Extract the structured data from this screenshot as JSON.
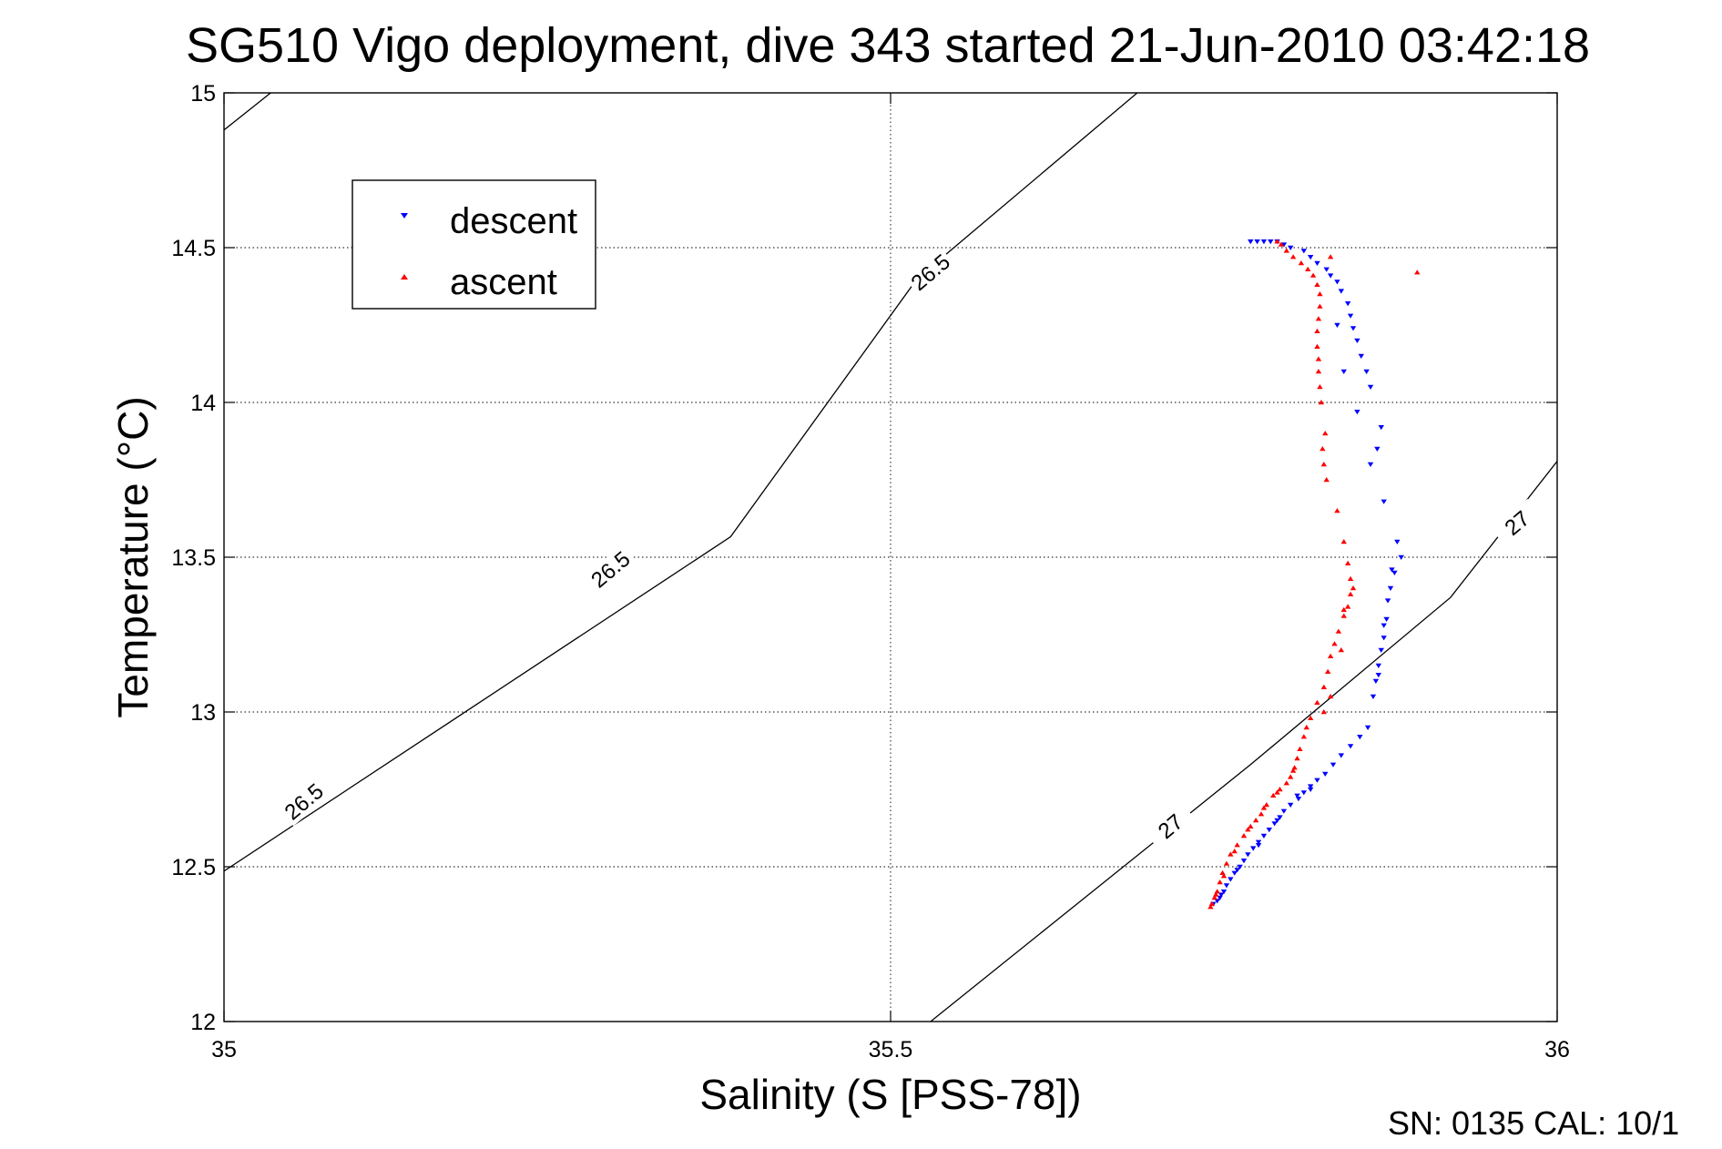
{
  "chart_data": {
    "type": "scatter",
    "title": "SG510 Vigo deployment, dive 343 started 21-Jun-2010 03:42:18",
    "xlabel": "Salinity (S [PSS-78])",
    "ylabel": "Temperature (°C)",
    "xlim": [
      35,
      36
    ],
    "ylim": [
      12,
      15
    ],
    "xticks": [
      "35",
      "35.5",
      "36"
    ],
    "yticks": [
      "12",
      "12.5",
      "13",
      "13.5",
      "14",
      "14.5",
      "15"
    ],
    "grid": true,
    "legend_position": "top-left",
    "footer": "SN: 0135  CAL: 10/1",
    "series": [
      {
        "name": "descent",
        "color": "#0000ff",
        "marker": "triangle-down",
        "points": [
          [
            35.785,
            14.52
          ],
          [
            35.79,
            14.52
          ],
          [
            35.795,
            14.51
          ],
          [
            35.8,
            14.5
          ],
          [
            35.81,
            14.49
          ],
          [
            35.815,
            14.47
          ],
          [
            35.82,
            14.45
          ],
          [
            35.827,
            14.43
          ],
          [
            35.83,
            14.41
          ],
          [
            35.835,
            14.39
          ],
          [
            35.838,
            14.36
          ],
          [
            35.843,
            14.32
          ],
          [
            35.845,
            14.28
          ],
          [
            35.847,
            14.24
          ],
          [
            35.85,
            14.2
          ],
          [
            35.853,
            14.15
          ],
          [
            35.857,
            14.1
          ],
          [
            35.86,
            14.05
          ],
          [
            35.868,
            13.92
          ],
          [
            35.865,
            13.85
          ],
          [
            35.86,
            13.8
          ],
          [
            35.87,
            13.68
          ],
          [
            35.88,
            13.55
          ],
          [
            35.883,
            13.5
          ],
          [
            35.878,
            13.45
          ],
          [
            35.875,
            13.4
          ],
          [
            35.873,
            13.36
          ],
          [
            35.872,
            13.3
          ],
          [
            35.87,
            13.24
          ],
          [
            35.868,
            13.2
          ],
          [
            35.866,
            13.15
          ],
          [
            35.864,
            13.1
          ],
          [
            35.862,
            13.05
          ],
          [
            35.858,
            12.95
          ],
          [
            35.852,
            12.92
          ],
          [
            35.845,
            12.89
          ],
          [
            35.838,
            12.86
          ],
          [
            35.832,
            12.83
          ],
          [
            35.826,
            12.8
          ],
          [
            35.82,
            12.78
          ],
          [
            35.815,
            12.76
          ],
          [
            35.81,
            12.74
          ],
          [
            35.806,
            12.72
          ],
          [
            35.8,
            12.7
          ],
          [
            35.795,
            12.68
          ],
          [
            35.792,
            12.66
          ],
          [
            35.788,
            12.64
          ],
          [
            35.784,
            12.62
          ],
          [
            35.78,
            12.6
          ],
          [
            35.776,
            12.58
          ],
          [
            35.772,
            12.56
          ],
          [
            35.768,
            12.54
          ],
          [
            35.765,
            12.52
          ],
          [
            35.762,
            12.5
          ],
          [
            35.758,
            12.48
          ],
          [
            35.755,
            12.46
          ],
          [
            35.752,
            12.44
          ],
          [
            35.75,
            12.42
          ],
          [
            35.747,
            12.4
          ],
          [
            35.745,
            12.39
          ],
          [
            35.742,
            12.38
          ],
          [
            35.77,
            14.52
          ],
          [
            35.775,
            14.52
          ],
          [
            35.78,
            14.52
          ],
          [
            35.84,
            14.1
          ],
          [
            35.835,
            14.25
          ],
          [
            35.85,
            13.97
          ],
          [
            35.866,
            13.12
          ],
          [
            35.87,
            13.28
          ],
          [
            35.876,
            13.46
          ],
          [
            35.815,
            12.75
          ],
          [
            35.805,
            12.73
          ],
          [
            35.79,
            12.65
          ],
          [
            35.776,
            12.57
          ],
          [
            35.76,
            12.49
          ],
          [
            35.748,
            12.41
          ]
        ]
      },
      {
        "name": "ascent",
        "color": "#ff0000",
        "marker": "triangle-up",
        "points": [
          [
            35.79,
            14.52
          ],
          [
            35.793,
            14.51
          ],
          [
            35.797,
            14.49
          ],
          [
            35.802,
            14.47
          ],
          [
            35.808,
            14.45
          ],
          [
            35.813,
            14.43
          ],
          [
            35.817,
            14.41
          ],
          [
            35.82,
            14.38
          ],
          [
            35.822,
            14.35
          ],
          [
            35.822,
            14.31
          ],
          [
            35.821,
            14.27
          ],
          [
            35.82,
            14.23
          ],
          [
            35.82,
            14.18
          ],
          [
            35.821,
            14.14
          ],
          [
            35.821,
            14.1
          ],
          [
            35.822,
            14.05
          ],
          [
            35.823,
            14.0
          ],
          [
            35.826,
            13.9
          ],
          [
            35.824,
            13.85
          ],
          [
            35.825,
            13.8
          ],
          [
            35.827,
            13.75
          ],
          [
            35.835,
            13.65
          ],
          [
            35.84,
            13.55
          ],
          [
            35.843,
            13.48
          ],
          [
            35.845,
            13.43
          ],
          [
            35.845,
            13.38
          ],
          [
            35.843,
            13.34
          ],
          [
            35.84,
            13.31
          ],
          [
            35.836,
            13.26
          ],
          [
            35.833,
            13.22
          ],
          [
            35.83,
            13.18
          ],
          [
            35.828,
            13.13
          ],
          [
            35.825,
            13.08
          ],
          [
            35.82,
            13.03
          ],
          [
            35.815,
            12.98
          ],
          [
            35.812,
            12.95
          ],
          [
            35.81,
            12.92
          ],
          [
            35.807,
            12.88
          ],
          [
            35.805,
            12.85
          ],
          [
            35.803,
            12.82
          ],
          [
            35.8,
            12.79
          ],
          [
            35.797,
            12.77
          ],
          [
            35.792,
            12.75
          ],
          [
            35.787,
            12.73
          ],
          [
            35.782,
            12.7
          ],
          [
            35.778,
            12.67
          ],
          [
            35.774,
            12.65
          ],
          [
            35.77,
            12.63
          ],
          [
            35.765,
            12.6
          ],
          [
            35.76,
            12.57
          ],
          [
            35.755,
            12.54
          ],
          [
            35.752,
            12.51
          ],
          [
            35.749,
            12.48
          ],
          [
            35.747,
            12.45
          ],
          [
            35.745,
            12.42
          ],
          [
            35.743,
            12.4
          ],
          [
            35.741,
            12.38
          ],
          [
            35.74,
            12.37
          ],
          [
            35.83,
            14.47
          ],
          [
            35.895,
            14.42
          ],
          [
            35.84,
            13.33
          ],
          [
            35.847,
            13.4
          ],
          [
            35.838,
            13.2
          ],
          [
            35.83,
            13.05
          ],
          [
            35.825,
            13.0
          ],
          [
            35.802,
            12.81
          ],
          [
            35.79,
            12.74
          ],
          [
            35.78,
            12.69
          ],
          [
            35.768,
            12.62
          ],
          [
            35.758,
            12.55
          ],
          [
            35.75,
            12.47
          ],
          [
            35.744,
            12.41
          ]
        ]
      }
    ],
    "contours": [
      {
        "label": "26.5",
        "points": [
          [
            35.0,
            12.486
          ],
          [
            35.38,
            13.566
          ],
          [
            35.52,
            14.4
          ],
          [
            35.685,
            15.0
          ]
        ]
      },
      {
        "label": "26.5",
        "points": [
          [
            35.0,
            14.88
          ],
          [
            35.035,
            15.0
          ]
        ]
      },
      {
        "label": "27",
        "points": [
          [
            35.53,
            12.0
          ],
          [
            35.77,
            12.83
          ],
          [
            35.92,
            13.37
          ],
          [
            36.0,
            13.81
          ]
        ]
      }
    ]
  }
}
